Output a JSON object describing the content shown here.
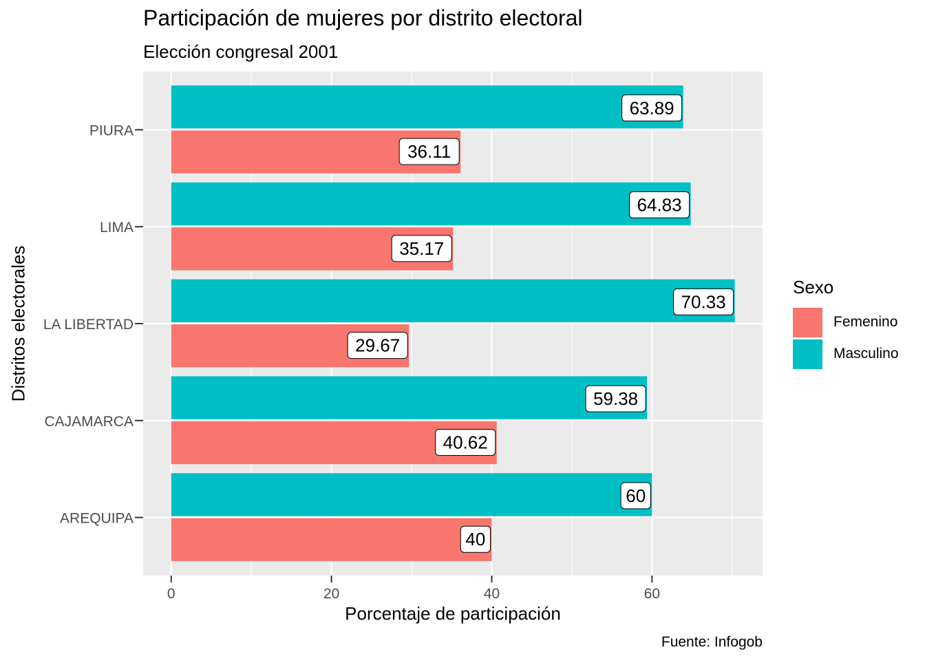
{
  "chart_data": {
    "type": "bar",
    "orientation": "horizontal",
    "title": "Participación de mujeres por distrito electoral",
    "subtitle": "Elección congresal 2001",
    "xlabel": "Porcentaje de participación",
    "ylabel": "Distritos electorales",
    "caption": "Fuente: Infogob",
    "categories": [
      "PIURA",
      "LIMA",
      "LA LIBERTAD",
      "CAJAMARCA",
      "AREQUIPA"
    ],
    "series": [
      {
        "name": "Masculino",
        "color": "#00BFC4",
        "values": [
          63.89,
          64.83,
          70.33,
          59.38,
          60
        ]
      },
      {
        "name": "Femenino",
        "color": "#F8766D",
        "values": [
          36.11,
          35.17,
          29.67,
          40.62,
          40
        ]
      }
    ],
    "data_labels": [
      [
        "63.89",
        "64.83",
        "70.33",
        "59.38",
        "60"
      ],
      [
        "36.11",
        "35.17",
        "29.67",
        "40.62",
        "40"
      ]
    ],
    "xlim": [
      -3.5,
      73.8
    ],
    "xticks": [
      0,
      20,
      40,
      60
    ],
    "xtick_labels": [
      "0",
      "20",
      "40",
      "60"
    ],
    "grid": true,
    "legend": {
      "title": "Sexo",
      "placement": "right",
      "items": [
        {
          "label": "Femenino",
          "color": "#F8766D"
        },
        {
          "label": "Masculino",
          "color": "#00BFC4"
        }
      ]
    }
  }
}
